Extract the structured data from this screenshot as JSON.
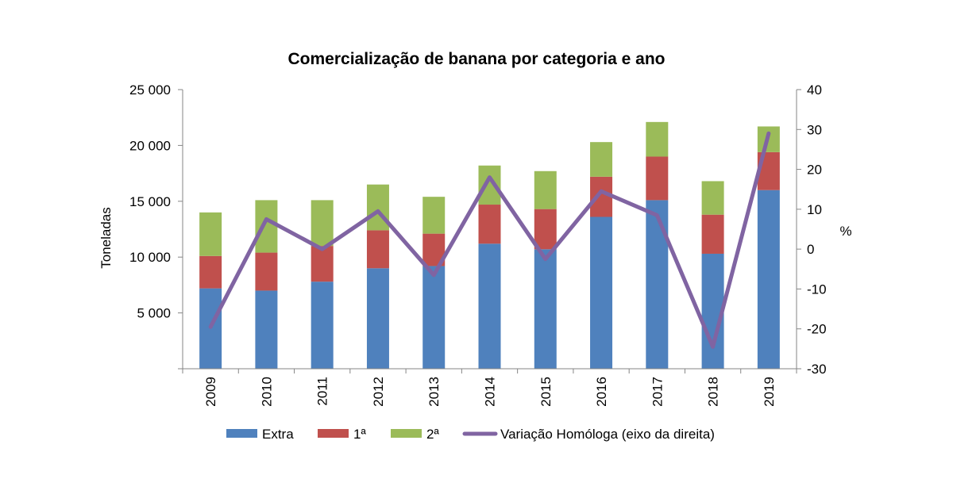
{
  "chart_data": {
    "type": "bar",
    "title": "Comercialização de banana por categoria e ano",
    "ylabel": "Toneladas",
    "y2label": "%",
    "categories": [
      "2009",
      "2010",
      "2011",
      "2012",
      "2013",
      "2014",
      "2015",
      "2016",
      "2017",
      "2018",
      "2019"
    ],
    "ylim": [
      0,
      25000
    ],
    "y2lim": [
      -30,
      40
    ],
    "yticks": [
      5000,
      10000,
      15000,
      20000,
      25000
    ],
    "ytick_labels": [
      "5 000",
      "10 000",
      "15 000",
      "20 000",
      "25 000"
    ],
    "y2ticks": [
      -30,
      -20,
      -10,
      0,
      10,
      20,
      30,
      40
    ],
    "y2tick_labels": [
      "-30",
      "-20",
      "-10",
      "0",
      "10",
      "20",
      "30",
      "40"
    ],
    "series": [
      {
        "name": "Extra",
        "type": "bar",
        "axis": "left",
        "color": "#4f81bd",
        "values": [
          7200,
          7000,
          7800,
          9000,
          9200,
          11200,
          10700,
          13600,
          15100,
          10300,
          16000
        ]
      },
      {
        "name": "1ª",
        "type": "bar",
        "axis": "left",
        "color": "#c0504d",
        "values": [
          2900,
          3400,
          3200,
          3400,
          2900,
          3500,
          3600,
          3600,
          3900,
          3500,
          3400
        ]
      },
      {
        "name": "2ª",
        "type": "bar",
        "axis": "left",
        "color": "#9bbb59",
        "values": [
          3900,
          4700,
          4100,
          4100,
          3300,
          3500,
          3400,
          3100,
          3100,
          3000,
          2300
        ]
      },
      {
        "name": "Variação Homóloga (eixo da direita)",
        "type": "line",
        "axis": "right",
        "color": "#8064a2",
        "values": [
          -19.5,
          7.5,
          0,
          9.5,
          -6.5,
          18,
          -2.5,
          14.5,
          8.5,
          -24.5,
          29
        ]
      }
    ],
    "grid": false,
    "legend_position": "bottom"
  }
}
